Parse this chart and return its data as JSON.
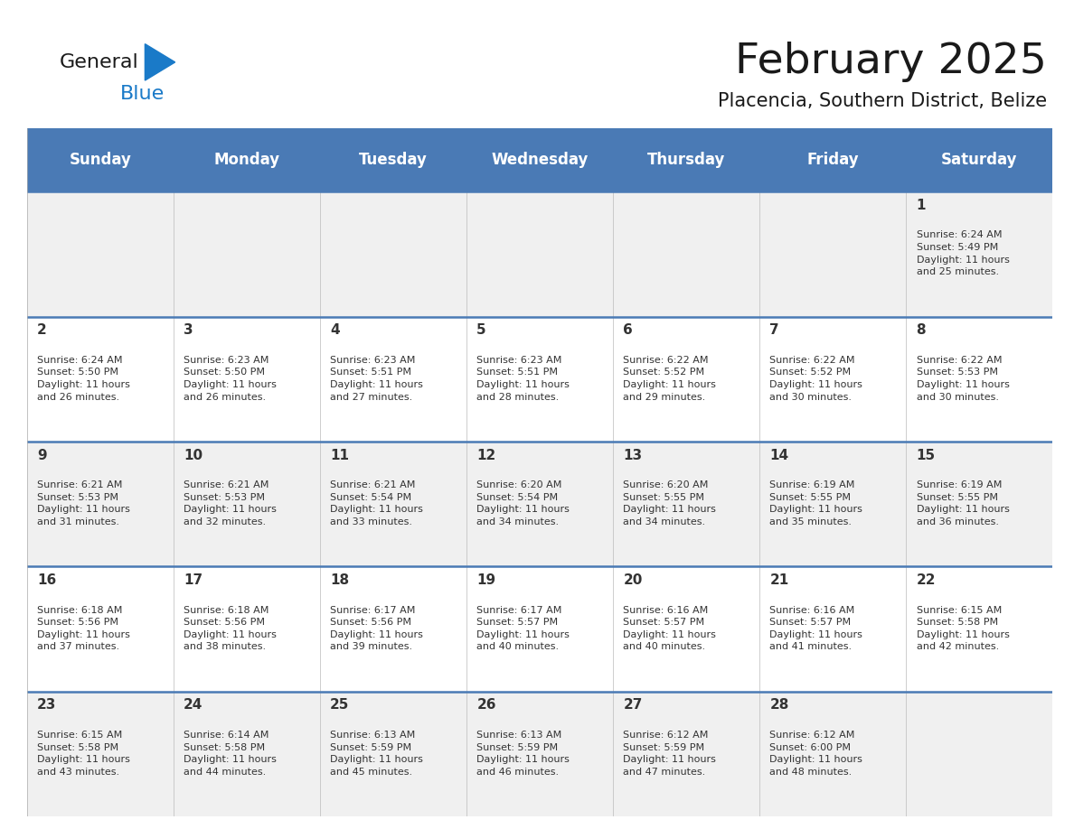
{
  "title": "February 2025",
  "subtitle": "Placencia, Southern District, Belize",
  "days_of_week": [
    "Sunday",
    "Monday",
    "Tuesday",
    "Wednesday",
    "Thursday",
    "Friday",
    "Saturday"
  ],
  "header_bg": "#4a7ab5",
  "header_text": "#ffffff",
  "cell_bg_odd": "#f0f0f0",
  "cell_bg_even": "#ffffff",
  "divider_color": "#4a7ab5",
  "text_color": "#333333",
  "day_num_color": "#333333",
  "logo_general_color": "#1a1a1a",
  "logo_blue_color": "#1a7ac8",
  "calendar_data": [
    [
      null,
      null,
      null,
      null,
      null,
      null,
      {
        "day": 1,
        "sunrise": "6:24 AM",
        "sunset": "5:49 PM",
        "daylight": "11 hours\nand 25 minutes."
      }
    ],
    [
      {
        "day": 2,
        "sunrise": "6:24 AM",
        "sunset": "5:50 PM",
        "daylight": "11 hours\nand 26 minutes."
      },
      {
        "day": 3,
        "sunrise": "6:23 AM",
        "sunset": "5:50 PM",
        "daylight": "11 hours\nand 26 minutes."
      },
      {
        "day": 4,
        "sunrise": "6:23 AM",
        "sunset": "5:51 PM",
        "daylight": "11 hours\nand 27 minutes."
      },
      {
        "day": 5,
        "sunrise": "6:23 AM",
        "sunset": "5:51 PM",
        "daylight": "11 hours\nand 28 minutes."
      },
      {
        "day": 6,
        "sunrise": "6:22 AM",
        "sunset": "5:52 PM",
        "daylight": "11 hours\nand 29 minutes."
      },
      {
        "day": 7,
        "sunrise": "6:22 AM",
        "sunset": "5:52 PM",
        "daylight": "11 hours\nand 30 minutes."
      },
      {
        "day": 8,
        "sunrise": "6:22 AM",
        "sunset": "5:53 PM",
        "daylight": "11 hours\nand 30 minutes."
      }
    ],
    [
      {
        "day": 9,
        "sunrise": "6:21 AM",
        "sunset": "5:53 PM",
        "daylight": "11 hours\nand 31 minutes."
      },
      {
        "day": 10,
        "sunrise": "6:21 AM",
        "sunset": "5:53 PM",
        "daylight": "11 hours\nand 32 minutes."
      },
      {
        "day": 11,
        "sunrise": "6:21 AM",
        "sunset": "5:54 PM",
        "daylight": "11 hours\nand 33 minutes."
      },
      {
        "day": 12,
        "sunrise": "6:20 AM",
        "sunset": "5:54 PM",
        "daylight": "11 hours\nand 34 minutes."
      },
      {
        "day": 13,
        "sunrise": "6:20 AM",
        "sunset": "5:55 PM",
        "daylight": "11 hours\nand 34 minutes."
      },
      {
        "day": 14,
        "sunrise": "6:19 AM",
        "sunset": "5:55 PM",
        "daylight": "11 hours\nand 35 minutes."
      },
      {
        "day": 15,
        "sunrise": "6:19 AM",
        "sunset": "5:55 PM",
        "daylight": "11 hours\nand 36 minutes."
      }
    ],
    [
      {
        "day": 16,
        "sunrise": "6:18 AM",
        "sunset": "5:56 PM",
        "daylight": "11 hours\nand 37 minutes."
      },
      {
        "day": 17,
        "sunrise": "6:18 AM",
        "sunset": "5:56 PM",
        "daylight": "11 hours\nand 38 minutes."
      },
      {
        "day": 18,
        "sunrise": "6:17 AM",
        "sunset": "5:56 PM",
        "daylight": "11 hours\nand 39 minutes."
      },
      {
        "day": 19,
        "sunrise": "6:17 AM",
        "sunset": "5:57 PM",
        "daylight": "11 hours\nand 40 minutes."
      },
      {
        "day": 20,
        "sunrise": "6:16 AM",
        "sunset": "5:57 PM",
        "daylight": "11 hours\nand 40 minutes."
      },
      {
        "day": 21,
        "sunrise": "6:16 AM",
        "sunset": "5:57 PM",
        "daylight": "11 hours\nand 41 minutes."
      },
      {
        "day": 22,
        "sunrise": "6:15 AM",
        "sunset": "5:58 PM",
        "daylight": "11 hours\nand 42 minutes."
      }
    ],
    [
      {
        "day": 23,
        "sunrise": "6:15 AM",
        "sunset": "5:58 PM",
        "daylight": "11 hours\nand 43 minutes."
      },
      {
        "day": 24,
        "sunrise": "6:14 AM",
        "sunset": "5:58 PM",
        "daylight": "11 hours\nand 44 minutes."
      },
      {
        "day": 25,
        "sunrise": "6:13 AM",
        "sunset": "5:59 PM",
        "daylight": "11 hours\nand 45 minutes."
      },
      {
        "day": 26,
        "sunrise": "6:13 AM",
        "sunset": "5:59 PM",
        "daylight": "11 hours\nand 46 minutes."
      },
      {
        "day": 27,
        "sunrise": "6:12 AM",
        "sunset": "5:59 PM",
        "daylight": "11 hours\nand 47 minutes."
      },
      {
        "day": 28,
        "sunrise": "6:12 AM",
        "sunset": "6:00 PM",
        "daylight": "11 hours\nand 48 minutes."
      },
      null
    ]
  ],
  "figsize": [
    11.88,
    9.18
  ],
  "dpi": 100
}
